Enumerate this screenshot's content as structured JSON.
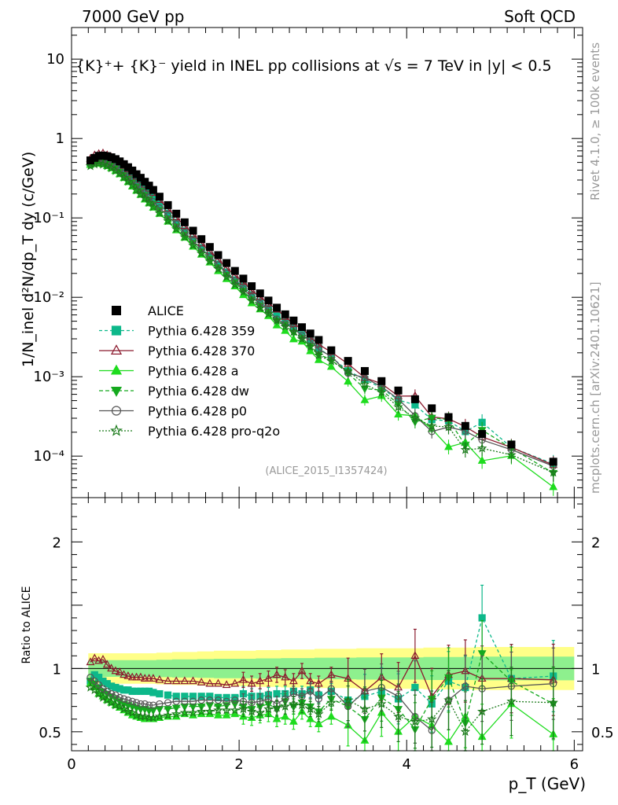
{
  "header": {
    "left": "7000 GeV pp",
    "right": "Soft QCD"
  },
  "side": {
    "rivet": "Rivet 4.1.0, ≥ 100k events",
    "mcplots": "mcplots.cern.ch [arXiv:2401.10621]"
  },
  "plot_title": "{K}⁺+ {K}⁻ yield in INEL pp collisions at √s =  7 TeV in |y| < 0.5",
  "analysis_tag": "(ALICE_2015_I1357424)",
  "chart_data": {
    "type": "scatter",
    "xlabel": "p_T (GeV)",
    "ylabel": "1/N_inel d²N/dp_T dy (c/GeV)",
    "ratio_ylabel": "Ratio to ALICE",
    "xlim": [
      0,
      6.1
    ],
    "ylim": [
      3e-05,
      25
    ],
    "ratio_ylim": [
      0.35,
      2.35
    ],
    "xticks": [
      0,
      2,
      4,
      6
    ],
    "xtick_labels": [
      "0",
      "2",
      "4",
      "6"
    ],
    "yticks": [
      0.0001,
      0.001,
      0.01,
      0.1,
      1,
      10
    ],
    "ytick_labels": [
      "10⁻⁴",
      "10⁻³",
      "10⁻²",
      "10⁻¹",
      "1",
      "10"
    ],
    "ratio_yticks": [
      0.5,
      1,
      2
    ],
    "ratio_ytick_labels": [
      "0.5",
      "1",
      "2"
    ],
    "x": [
      0.225,
      0.275,
      0.325,
      0.375,
      0.425,
      0.475,
      0.525,
      0.575,
      0.625,
      0.675,
      0.725,
      0.775,
      0.825,
      0.875,
      0.925,
      0.975,
      1.05,
      1.15,
      1.25,
      1.35,
      1.45,
      1.55,
      1.65,
      1.75,
      1.85,
      1.95,
      2.05,
      2.15,
      2.25,
      2.35,
      2.45,
      2.55,
      2.65,
      2.75,
      2.85,
      2.95,
      3.1,
      3.3,
      3.5,
      3.7,
      3.9,
      4.1,
      4.3,
      4.5,
      4.7,
      4.9,
      5.25,
      5.75
    ],
    "alice": [
      0.53,
      0.57,
      0.605,
      0.61,
      0.6,
      0.58,
      0.55,
      0.515,
      0.475,
      0.435,
      0.395,
      0.355,
      0.32,
      0.285,
      0.255,
      0.225,
      0.185,
      0.145,
      0.113,
      0.088,
      0.069,
      0.054,
      0.043,
      0.034,
      0.027,
      0.0215,
      0.0172,
      0.0138,
      0.0112,
      0.0091,
      0.0074,
      0.0061,
      0.0051,
      0.0042,
      0.0035,
      0.0029,
      0.00215,
      0.00158,
      0.00118,
      0.00088,
      0.00067,
      0.00052,
      0.0004,
      0.00031,
      0.00024,
      0.00019,
      0.00014,
      8.5e-05
    ],
    "alice_band_half_width": [
      0.12,
      0.12,
      0.12,
      0.12,
      0.12,
      0.12,
      0.12,
      0.12,
      0.12,
      0.12,
      0.12,
      0.12,
      0.12,
      0.12,
      0.12,
      0.12,
      0.125,
      0.125,
      0.13,
      0.13,
      0.13,
      0.135,
      0.135,
      0.14,
      0.14,
      0.14,
      0.14,
      0.14,
      0.145,
      0.145,
      0.145,
      0.15,
      0.15,
      0.15,
      0.15,
      0.155,
      0.155,
      0.155,
      0.16,
      0.16,
      0.16,
      0.16,
      0.165,
      0.165,
      0.165,
      0.17,
      0.17,
      0.17
    ],
    "series": [
      {
        "name": "Pythia 6.428 359",
        "color": "#0db88a",
        "dash": "4,3",
        "marker": "square",
        "filled": true,
        "ratio": [
          0.9,
          0.95,
          0.93,
          0.9,
          0.88,
          0.86,
          0.85,
          0.84,
          0.83,
          0.83,
          0.82,
          0.82,
          0.82,
          0.82,
          0.82,
          0.81,
          0.8,
          0.79,
          0.78,
          0.78,
          0.78,
          0.78,
          0.78,
          0.77,
          0.77,
          0.77,
          0.8,
          0.78,
          0.78,
          0.79,
          0.8,
          0.8,
          0.82,
          0.8,
          0.83,
          0.79,
          0.82,
          0.75,
          0.78,
          0.82,
          0.76,
          0.85,
          0.72,
          0.9,
          0.85,
          1.4,
          0.92,
          0.94
        ]
      },
      {
        "name": "Pythia 6.428 370",
        "color": "#8b1a2e",
        "dash": "",
        "marker": "triangle",
        "filled": false,
        "ratio": [
          1.05,
          1.08,
          1.06,
          1.07,
          1.03,
          1.0,
          0.98,
          0.97,
          0.95,
          0.94,
          0.93,
          0.93,
          0.93,
          0.92,
          0.92,
          0.92,
          0.91,
          0.9,
          0.9,
          0.9,
          0.9,
          0.89,
          0.88,
          0.88,
          0.87,
          0.88,
          0.91,
          0.88,
          0.9,
          0.92,
          0.95,
          0.93,
          0.9,
          0.98,
          0.9,
          0.88,
          0.95,
          0.92,
          0.82,
          0.93,
          0.85,
          1.1,
          0.78,
          0.95,
          0.98,
          0.92,
          0.92,
          0.91
        ]
      },
      {
        "name": "Pythia 6.428 a",
        "color": "#1edc1e",
        "dash": "",
        "marker": "triangle",
        "filled": true,
        "ratio": [
          0.88,
          0.85,
          0.8,
          0.78,
          0.75,
          0.73,
          0.71,
          0.69,
          0.67,
          0.65,
          0.63,
          0.62,
          0.61,
          0.6,
          0.6,
          0.6,
          0.61,
          0.62,
          0.62,
          0.64,
          0.63,
          0.64,
          0.64,
          0.63,
          0.63,
          0.64,
          0.62,
          0.61,
          0.63,
          0.64,
          0.6,
          0.62,
          0.58,
          0.66,
          0.6,
          0.56,
          0.62,
          0.55,
          0.43,
          0.65,
          0.5,
          0.62,
          0.55,
          0.42,
          0.62,
          0.46,
          0.72,
          0.48
        ]
      },
      {
        "name": "Pythia 6.428 dw",
        "color": "#15a91e",
        "dash": "5,3",
        "marker": "triangledown",
        "filled": true,
        "ratio": [
          0.9,
          0.88,
          0.85,
          0.82,
          0.8,
          0.78,
          0.76,
          0.74,
          0.72,
          0.71,
          0.7,
          0.69,
          0.68,
          0.68,
          0.67,
          0.67,
          0.68,
          0.68,
          0.69,
          0.7,
          0.7,
          0.7,
          0.71,
          0.7,
          0.71,
          0.72,
          0.7,
          0.68,
          0.7,
          0.72,
          0.68,
          0.74,
          0.7,
          0.73,
          0.7,
          0.66,
          0.76,
          0.7,
          0.6,
          0.77,
          0.68,
          0.52,
          0.76,
          0.93,
          0.57,
          1.12,
          0.9,
          0.72
        ]
      },
      {
        "name": "Pythia 6.428 p0",
        "color": "#555555",
        "dash": "",
        "marker": "circle",
        "filled": false,
        "ratio": [
          0.93,
          0.9,
          0.87,
          0.84,
          0.82,
          0.8,
          0.79,
          0.77,
          0.76,
          0.75,
          0.74,
          0.73,
          0.72,
          0.72,
          0.71,
          0.71,
          0.72,
          0.73,
          0.74,
          0.74,
          0.74,
          0.75,
          0.75,
          0.75,
          0.74,
          0.75,
          0.74,
          0.73,
          0.74,
          0.76,
          0.72,
          0.76,
          0.8,
          0.78,
          0.82,
          0.76,
          0.84,
          0.7,
          0.82,
          0.85,
          0.78,
          0.62,
          0.51,
          0.75,
          0.86,
          0.84,
          0.86,
          0.88
        ]
      },
      {
        "name": "Pythia 6.428 pro-q2o",
        "color": "#1a7a1a",
        "dash": "2,2",
        "marker": "star",
        "filled": false,
        "ratio": [
          0.85,
          0.83,
          0.8,
          0.77,
          0.75,
          0.73,
          0.71,
          0.7,
          0.68,
          0.66,
          0.65,
          0.63,
          0.62,
          0.62,
          0.61,
          0.61,
          0.62,
          0.63,
          0.64,
          0.65,
          0.65,
          0.66,
          0.66,
          0.67,
          0.67,
          0.67,
          0.68,
          0.66,
          0.65,
          0.68,
          0.69,
          0.7,
          0.72,
          0.71,
          0.68,
          0.64,
          0.73,
          0.75,
          0.68,
          0.72,
          0.62,
          0.58,
          0.6,
          0.75,
          0.5,
          0.66,
          0.74,
          0.73
        ]
      }
    ],
    "legend": [
      "ALICE",
      "Pythia 6.428 359",
      "Pythia 6.428 370",
      "Pythia 6.428 a",
      "Pythia 6.428 dw",
      "Pythia 6.428 p0",
      "Pythia 6.428 pro-q2o"
    ],
    "legend_position": "bottom-left"
  }
}
